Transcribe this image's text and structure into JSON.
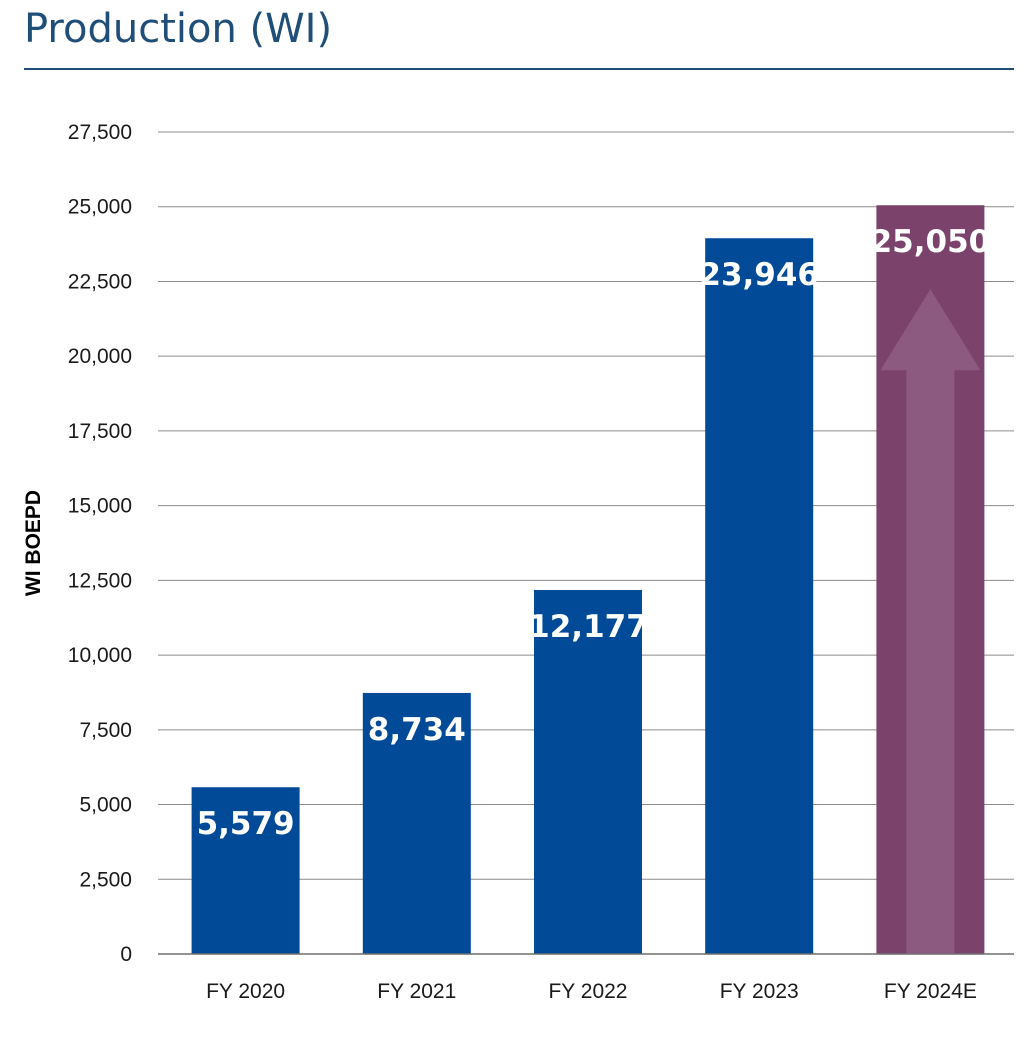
{
  "title": "Production (WI)",
  "colors": {
    "title": "#1f4e79",
    "bar": "#004a98",
    "bar_forecast": "#7b436b",
    "arrow": "#8c5a80",
    "grid": "#8c8c8c"
  },
  "chart_data": {
    "type": "bar",
    "title": "",
    "xlabel": "",
    "ylabel": "WI BOEPD",
    "categories": [
      "FY 2020",
      "FY 2021",
      "FY 2022",
      "FY 2023",
      "FY 2024E"
    ],
    "values": [
      5579,
      8734,
      12177,
      23946,
      25050
    ],
    "value_labels": [
      "5,579",
      "8,734",
      "12,177",
      "23,946",
      "25,050"
    ],
    "ylim": [
      0,
      27500
    ],
    "yticks": [
      0,
      2500,
      5000,
      7500,
      10000,
      12500,
      15000,
      17500,
      20000,
      22500,
      25000,
      27500
    ],
    "ytick_labels": [
      "0",
      "2,500",
      "5,000",
      "7,500",
      "10,000",
      "12,500",
      "15,000",
      "17,500",
      "20,000",
      "22,500",
      "25,000",
      "27,500"
    ],
    "grid": true,
    "legend": "none",
    "forecast_category": "FY 2024E",
    "forecast_arrow": "up-arrow-icon"
  }
}
